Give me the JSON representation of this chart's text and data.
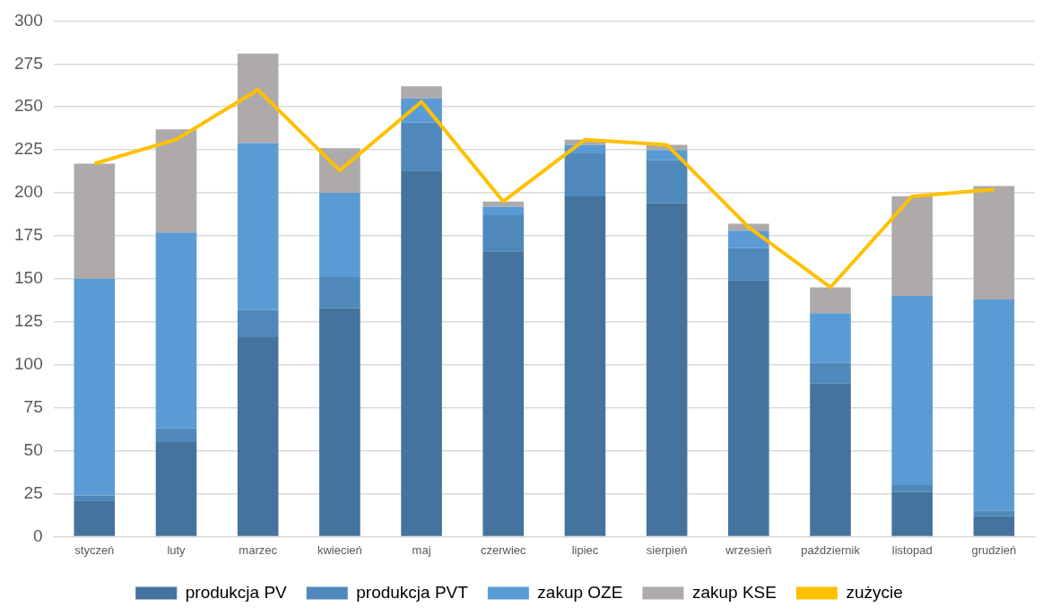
{
  "chart_data": {
    "type": "bar",
    "stacked": true,
    "categories": [
      "styczeń",
      "luty",
      "marzec",
      "kwiecień",
      "maj",
      "czerwiec",
      "lipiec",
      "sierpień",
      "wrzesień",
      "październik",
      "listopad",
      "grudzień"
    ],
    "series": [
      {
        "name": "produkcja PV",
        "color": "#44739d",
        "values": [
          21,
          55,
          116,
          133,
          213,
          166,
          198,
          194,
          149,
          89,
          26,
          12
        ]
      },
      {
        "name": "produkcja PVT",
        "color": "#4f88bb",
        "values": [
          3,
          8,
          16,
          18,
          28,
          21,
          25,
          25,
          19,
          12,
          4,
          3
        ]
      },
      {
        "name": "zakup OZE",
        "color": "#5b9bd5",
        "values": [
          126,
          114,
          97,
          49,
          14,
          5,
          5,
          6,
          10,
          29,
          110,
          123
        ]
      },
      {
        "name": "zakup KSE",
        "color": "#adaaa9",
        "values": [
          67,
          60,
          52,
          26,
          7,
          3,
          3,
          3,
          4,
          15,
          58,
          66
        ]
      },
      {
        "name": "zużycie",
        "type": "line",
        "color": "#ffc000",
        "values": [
          217,
          231,
          260,
          213,
          253,
          195,
          231,
          228,
          180,
          145,
          198,
          202
        ]
      }
    ],
    "ylim": [
      0,
      300
    ],
    "yticks": [
      0,
      25,
      50,
      75,
      100,
      125,
      150,
      175,
      200,
      225,
      250,
      275,
      300
    ],
    "grid": "y",
    "legend": "bottom",
    "marker": "none"
  }
}
